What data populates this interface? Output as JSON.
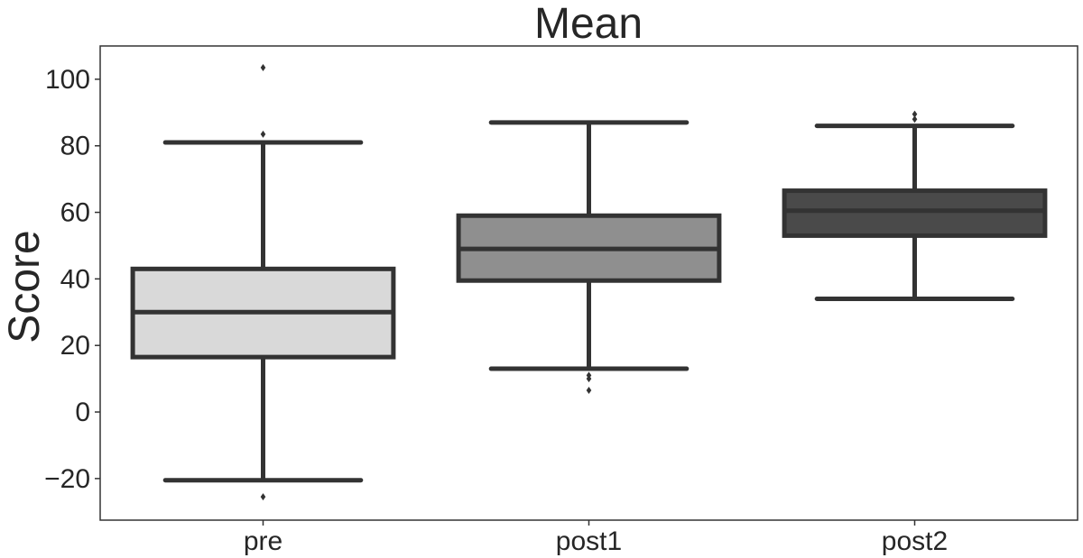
{
  "chart_data": {
    "type": "box",
    "title": "Mean",
    "xlabel": "",
    "ylabel": "Score",
    "categories": [
      "pre",
      "post1",
      "post2"
    ],
    "ylim": [
      -32.5,
      110
    ],
    "yticks": [
      -20,
      0,
      20,
      40,
      60,
      80,
      100
    ],
    "ytick_labels": [
      "−20",
      "0",
      "20",
      "40",
      "60",
      "80",
      "100"
    ],
    "grid": false,
    "colors": {
      "box_pre": "#d9d9d9",
      "box_post1": "#8f8f8f",
      "box_post2": "#4a4a4a",
      "line": "#333333",
      "axis": "#333333",
      "text": "#262626"
    },
    "boxes": [
      {
        "category": "pre",
        "whisker_low": -20.5,
        "q1": 16.5,
        "median": 30,
        "q3": 43,
        "whisker_high": 81,
        "outliers": [
          -25.5,
          83.5,
          103.5
        ]
      },
      {
        "category": "post1",
        "whisker_low": 13,
        "q1": 39.5,
        "median": 49,
        "q3": 59,
        "whisker_high": 87,
        "outliers": [
          6.5,
          10,
          11
        ]
      },
      {
        "category": "post2",
        "whisker_low": 34,
        "q1": 53,
        "median": 60.5,
        "q3": 66.5,
        "whisker_high": 86,
        "outliers": [
          88,
          89.5
        ]
      }
    ]
  }
}
